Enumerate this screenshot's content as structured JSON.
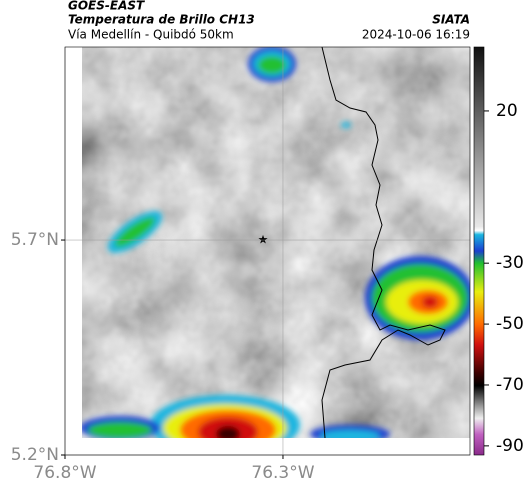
{
  "header": {
    "satellite": "GOES-EAST",
    "product": "Temperatura de Brillo CH13",
    "route": "Vía Medellín - Quibdó 50km",
    "source": "SIATA",
    "timestamp": "2024-10-06 16:19"
  },
  "map": {
    "xlim": [
      -76.8,
      -75.871
    ],
    "ylim": [
      5.2,
      6.149
    ],
    "xticks": [
      {
        "value": -76.8,
        "label": "76.8°W"
      },
      {
        "value": -76.3,
        "label": "76.3°W"
      }
    ],
    "yticks": [
      {
        "value": 5.7,
        "label": "5.7°N"
      },
      {
        "value": 5.2,
        "label": "5.2°N"
      }
    ]
  },
  "colorbar": {
    "lim": [
      -93,
      41
    ],
    "ticks": [
      20,
      -30,
      -50,
      -70,
      -90
    ]
  }
}
